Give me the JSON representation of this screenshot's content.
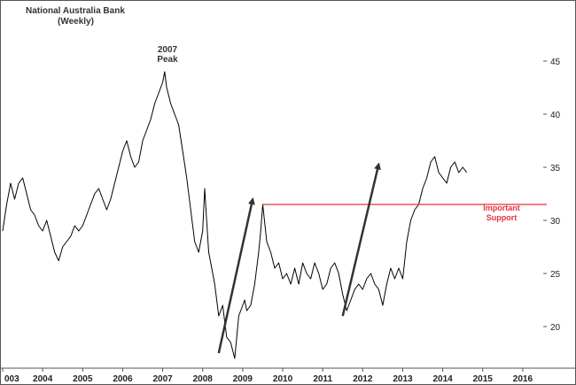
{
  "chart_data": {
    "type": "line",
    "title": "National Australia Bank",
    "subtitle": "(Weekly)",
    "xlabel": "",
    "ylabel": "",
    "x_tick_labels": [
      "003",
      "2004",
      "2005",
      "2006",
      "2007",
      "2008",
      "2009",
      "2010",
      "2011",
      "2012",
      "2013",
      "2014",
      "2015",
      "2016"
    ],
    "y_ticks": [
      20,
      25,
      30,
      35,
      40,
      45
    ],
    "y_tick_labels": [
      "20",
      "25",
      "30",
      "35",
      "40",
      "45"
    ],
    "xlim": [
      2003.0,
      2016.6
    ],
    "ylim": [
      16.5,
      49
    ],
    "grid": false,
    "legend": "none",
    "y_axis_position": "right",
    "series": [
      {
        "color": "#000000",
        "x": [
          2003.0,
          2003.1,
          2003.2,
          2003.3,
          2003.4,
          2003.5,
          2003.6,
          2003.7,
          2003.8,
          2003.9,
          2004.0,
          2004.1,
          2004.2,
          2004.3,
          2004.4,
          2004.5,
          2004.6,
          2004.7,
          2004.8,
          2004.9,
          2005.0,
          2005.1,
          2005.2,
          2005.3,
          2005.4,
          2005.5,
          2005.6,
          2005.7,
          2005.8,
          2005.9,
          2006.0,
          2006.1,
          2006.2,
          2006.3,
          2006.4,
          2006.5,
          2006.6,
          2006.7,
          2006.8,
          2006.9,
          2007.0,
          2007.05,
          2007.1,
          2007.2,
          2007.3,
          2007.4,
          2007.5,
          2007.6,
          2007.7,
          2007.8,
          2007.9,
          2008.0,
          2008.05,
          2008.1,
          2008.15,
          2008.2,
          2008.3,
          2008.4,
          2008.5,
          2008.6,
          2008.7,
          2008.8,
          2008.9,
          2009.0,
          2009.05,
          2009.1,
          2009.2,
          2009.3,
          2009.4,
          2009.45,
          2009.5,
          2009.6,
          2009.7,
          2009.8,
          2009.9,
          2010.0,
          2010.1,
          2010.2,
          2010.3,
          2010.4,
          2010.5,
          2010.6,
          2010.7,
          2010.8,
          2010.9,
          2011.0,
          2011.1,
          2011.2,
          2011.3,
          2011.4,
          2011.5,
          2011.6,
          2011.7,
          2011.8,
          2011.9,
          2012.0,
          2012.1,
          2012.2,
          2012.3,
          2012.4,
          2012.5,
          2012.6,
          2012.7,
          2012.8,
          2012.9,
          2013.0,
          2013.1,
          2013.2,
          2013.3,
          2013.4,
          2013.5,
          2013.6,
          2013.7,
          2013.8,
          2013.9,
          2014.0,
          2014.1,
          2014.2,
          2014.3,
          2014.4,
          2014.5,
          2014.6
        ],
        "values": [
          29.0,
          31.5,
          33.5,
          32.0,
          33.5,
          34.0,
          32.5,
          31.0,
          30.5,
          29.5,
          29.0,
          30.0,
          28.5,
          27.0,
          26.2,
          27.5,
          28.0,
          28.5,
          29.5,
          29.0,
          29.5,
          30.5,
          31.5,
          32.5,
          33.0,
          32.0,
          31.0,
          32.0,
          33.5,
          35.0,
          36.5,
          37.5,
          36.0,
          35.0,
          35.5,
          37.5,
          38.5,
          39.5,
          41.0,
          42.0,
          43.0,
          44.0,
          42.5,
          41.0,
          40.0,
          39.0,
          36.5,
          34.0,
          31.0,
          28.0,
          27.0,
          29.0,
          33.0,
          30.0,
          27.0,
          26.0,
          24.0,
          21.0,
          22.0,
          19.0,
          18.5,
          17.0,
          21.0,
          22.0,
          22.5,
          21.5,
          22.0,
          24.0,
          27.0,
          29.0,
          31.5,
          28.0,
          27.0,
          25.5,
          26.0,
          24.5,
          25.0,
          24.0,
          25.5,
          24.0,
          26.0,
          25.0,
          24.5,
          26.0,
          25.0,
          23.5,
          24.0,
          25.5,
          26.0,
          25.0,
          23.0,
          21.5,
          22.5,
          23.5,
          24.0,
          23.5,
          24.5,
          25.0,
          24.0,
          23.5,
          22.0,
          24.0,
          25.5,
          24.5,
          25.5,
          24.5,
          28.0,
          30.0,
          31.0,
          31.5,
          33.0,
          34.0,
          35.5,
          36.0,
          34.5,
          34.0,
          33.5,
          35.0,
          35.5,
          34.5,
          35.0,
          34.5
        ]
      }
    ],
    "annotations": {
      "peak_label": [
        "2007",
        "Peak"
      ],
      "support_label": [
        "Important",
        "Support"
      ],
      "support_level": 31.5,
      "support_start_x": 2009.5,
      "support_color": "#e8313a",
      "arrows": [
        {
          "from": [
            2008.4,
            17.5
          ],
          "to": [
            2009.25,
            32.0
          ]
        },
        {
          "from": [
            2011.5,
            21.0
          ],
          "to": [
            2012.4,
            35.3
          ]
        }
      ]
    }
  }
}
